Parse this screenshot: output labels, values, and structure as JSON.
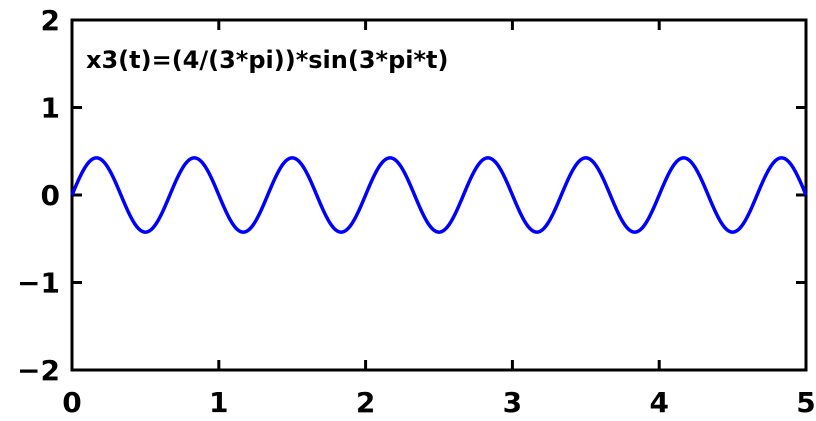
{
  "chart_data": {
    "type": "line",
    "title": "",
    "xlabel": "",
    "ylabel": "",
    "xlim": [
      0,
      5
    ],
    "ylim": [
      -2,
      2
    ],
    "grid": false,
    "x_ticks": [
      0,
      1,
      2,
      3,
      4,
      5
    ],
    "y_ticks": [
      -2,
      -1,
      0,
      1,
      2
    ],
    "x_tick_labels": [
      "0",
      "1",
      "2",
      "3",
      "4",
      "5"
    ],
    "y_tick_labels": [
      "−2",
      "−1",
      "0",
      "1",
      "2"
    ],
    "annotations": [
      {
        "text": "x3(t)=(4/(3*pi))*sin(3*pi*t)"
      }
    ],
    "series": [
      {
        "color": "#0000ff",
        "function": {
          "kind": "sin",
          "amplitude": 0.4244,
          "angular_frequency": 9.4248
        },
        "x_range": [
          0,
          5
        ],
        "samples": 801
      }
    ]
  }
}
